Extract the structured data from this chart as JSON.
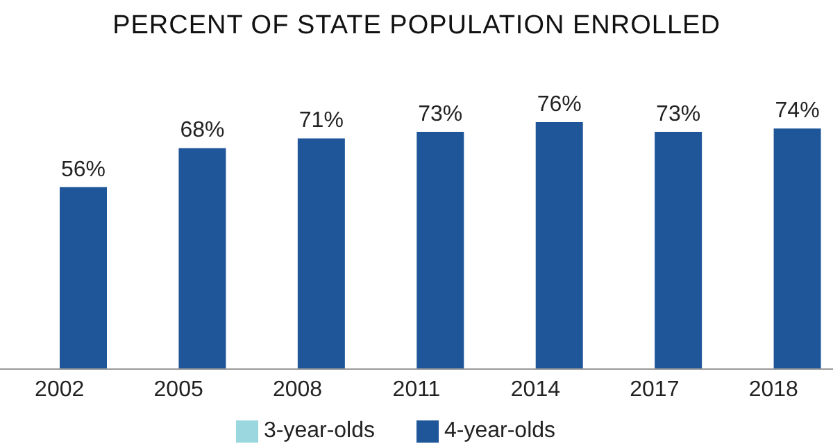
{
  "chart_data": {
    "type": "bar",
    "title": "PERCENT OF STATE POPULATION ENROLLED",
    "categories": [
      "2002",
      "2005",
      "2008",
      "2011",
      "2014",
      "2017",
      "2018"
    ],
    "series": [
      {
        "name": "3-year-olds",
        "color": "#9ad7de",
        "values": [
          null,
          null,
          null,
          null,
          null,
          null,
          null
        ]
      },
      {
        "name": "4-year-olds",
        "color": "#1f5699",
        "values": [
          56,
          68,
          71,
          73,
          76,
          73,
          74
        ],
        "value_labels": [
          "56%",
          "68%",
          "71%",
          "73%",
          "76%",
          "73%",
          "74%"
        ]
      }
    ],
    "legend": "bottom",
    "grid": false,
    "tick_labels": "x"
  }
}
